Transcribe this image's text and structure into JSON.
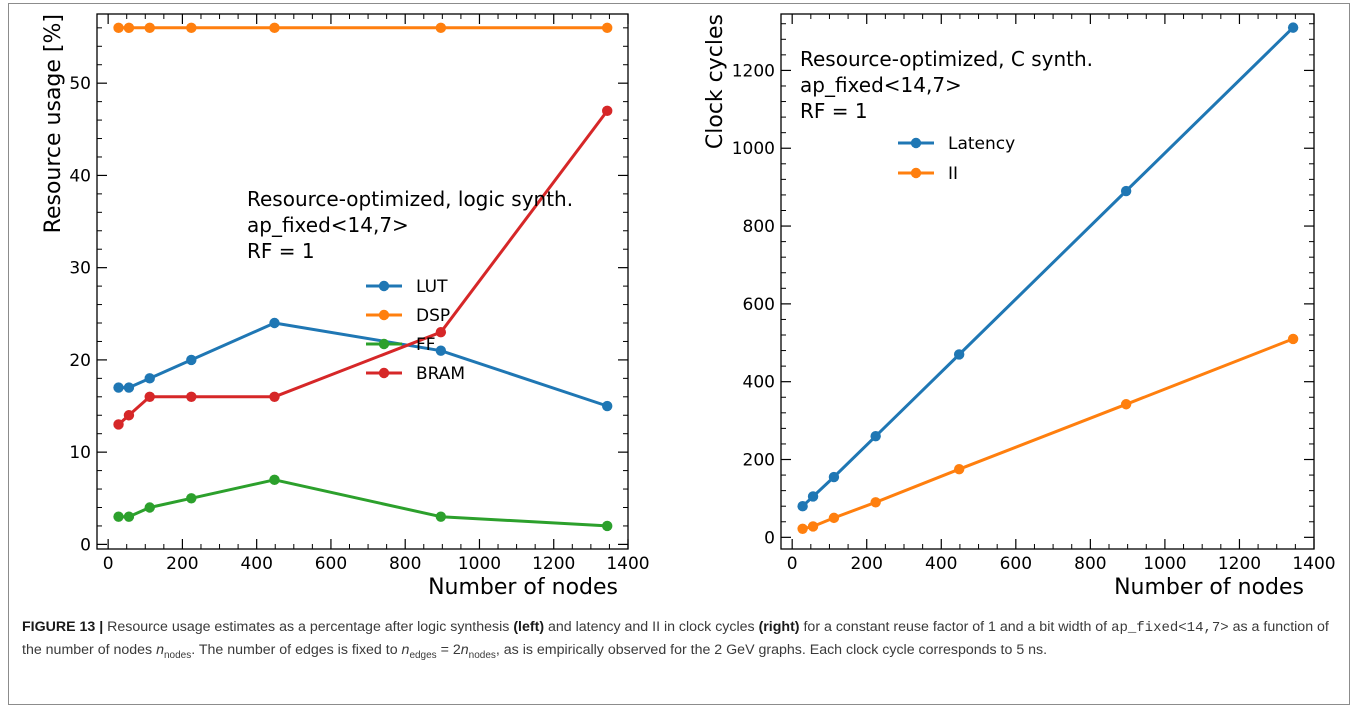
{
  "chart_data": [
    {
      "type": "line",
      "title": "",
      "xlabel": "Number of nodes",
      "ylabel": "Resource usage [%]",
      "xlim": [
        -30,
        1400
      ],
      "ylim": [
        -0.5,
        57.5
      ],
      "xticks": [
        0,
        200,
        400,
        600,
        800,
        1000,
        1200,
        1400
      ],
      "yticks": [
        0,
        10,
        20,
        30,
        40,
        50
      ],
      "x": [
        28,
        56,
        112,
        224,
        448,
        896,
        1344
      ],
      "annotation": [
        "Resource-optimized, logic synth.",
        "ap_fixed<14,7>",
        "RF = 1"
      ],
      "legend_location": "center-right",
      "grid": false,
      "series": [
        {
          "name": "LUT",
          "color": "#1f77b4",
          "values": [
            17,
            17,
            18,
            20,
            24,
            21,
            15
          ]
        },
        {
          "name": "DSP",
          "color": "#ff7f0e",
          "values": [
            56,
            56,
            56,
            56,
            56,
            56,
            56
          ]
        },
        {
          "name": "FF",
          "color": "#2ca02c",
          "values": [
            3,
            3,
            4,
            5,
            7,
            3,
            2
          ]
        },
        {
          "name": "BRAM",
          "color": "#d62728",
          "values": [
            13,
            14,
            16,
            16,
            16,
            23,
            47
          ]
        }
      ]
    },
    {
      "type": "line",
      "title": "",
      "xlabel": "Number of nodes",
      "ylabel": "Clock cycles",
      "xlim": [
        -30,
        1400
      ],
      "ylim": [
        -30,
        1345
      ],
      "xticks": [
        0,
        200,
        400,
        600,
        800,
        1000,
        1200,
        1400
      ],
      "yticks": [
        0,
        200,
        400,
        600,
        800,
        1000,
        1200
      ],
      "x": [
        28,
        56,
        112,
        224,
        448,
        896,
        1344
      ],
      "annotation": [
        "Resource-optimized, C synth.",
        "ap_fixed<14,7>",
        "RF = 1"
      ],
      "legend_location": "upper-left",
      "grid": false,
      "series": [
        {
          "name": "Latency",
          "color": "#1f77b4",
          "values": [
            80,
            105,
            155,
            260,
            470,
            890,
            1310
          ]
        },
        {
          "name": "II",
          "color": "#ff7f0e",
          "values": [
            22,
            28,
            50,
            90,
            175,
            342,
            510
          ]
        }
      ]
    }
  ],
  "caption": {
    "label": "FIGURE 13 |",
    "part1": " Resource usage estimates as a percentage after logic synthesis ",
    "left_word": "(left)",
    "part2": " and latency and II in clock cycles ",
    "right_word": "(right)",
    "part3": " for a constant reuse factor of 1 and a bit width of ",
    "code": "ap_fixed<14,7>",
    "part4": " as a function of the number of nodes ",
    "n_symbol": "n",
    "nodes_sub": "nodes",
    "part5": ". The number of edges is fixed to ",
    "edges_sub": "edges",
    "eq_text": " = 2",
    "part6": ", as is empirically observed for the 2 GeV graphs. Each clock cycle corresponds to 5 ns."
  }
}
